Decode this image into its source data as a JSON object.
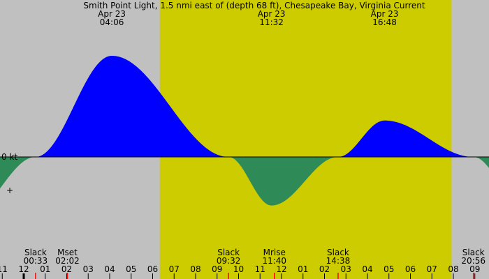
{
  "chart_data": {
    "type": "area",
    "title": "Smith Point Light, 1.5 nmi east of (depth 68 ft), Chesapeake Bay, Virginia Current",
    "zero_label": "0 kt",
    "date": "Apr 23",
    "colors": {
      "background": "#c0c0c0",
      "daylight": "#cccc00",
      "flood": "#0000ff",
      "ebb": "#2e8b57",
      "event_tick": "#ff0000"
    },
    "daylight": [
      "06:20",
      "19:55"
    ],
    "x_ticks": [
      "11",
      "12",
      "01",
      "02",
      "03",
      "04",
      "05",
      "06",
      "07",
      "08",
      "09",
      "10",
      "11",
      "12",
      "01",
      "02",
      "03",
      "04",
      "05",
      "06",
      "07",
      "08",
      "09"
    ],
    "maxima": [
      {
        "date": "Apr 23",
        "time": "04:06",
        "value": 1.0
      },
      {
        "date": "Apr 23",
        "time": "11:32",
        "value": -0.48
      },
      {
        "date": "Apr 23",
        "time": "16:48",
        "value": 0.36
      }
    ],
    "events": [
      {
        "label": "Slack",
        "time": "00:33"
      },
      {
        "label": "Mset",
        "time": "02:02"
      },
      {
        "label": "Slack",
        "time": "09:32"
      },
      {
        "label": "Mrise",
        "time": "11:40"
      },
      {
        "label": "Slack",
        "time": "14:38"
      },
      {
        "label": "Slack",
        "time": "20:56"
      }
    ],
    "curve": [
      {
        "time": "-02:30",
        "value": -0.55
      },
      {
        "time": "00:33",
        "value": 0
      },
      {
        "time": "04:06",
        "value": 1.0
      },
      {
        "time": "09:32",
        "value": 0
      },
      {
        "time": "11:32",
        "value": -0.48
      },
      {
        "time": "14:38",
        "value": 0
      },
      {
        "time": "16:48",
        "value": 0.36
      },
      {
        "time": "20:56",
        "value": 0
      },
      {
        "time": "23:00",
        "value": -0.4
      }
    ]
  }
}
